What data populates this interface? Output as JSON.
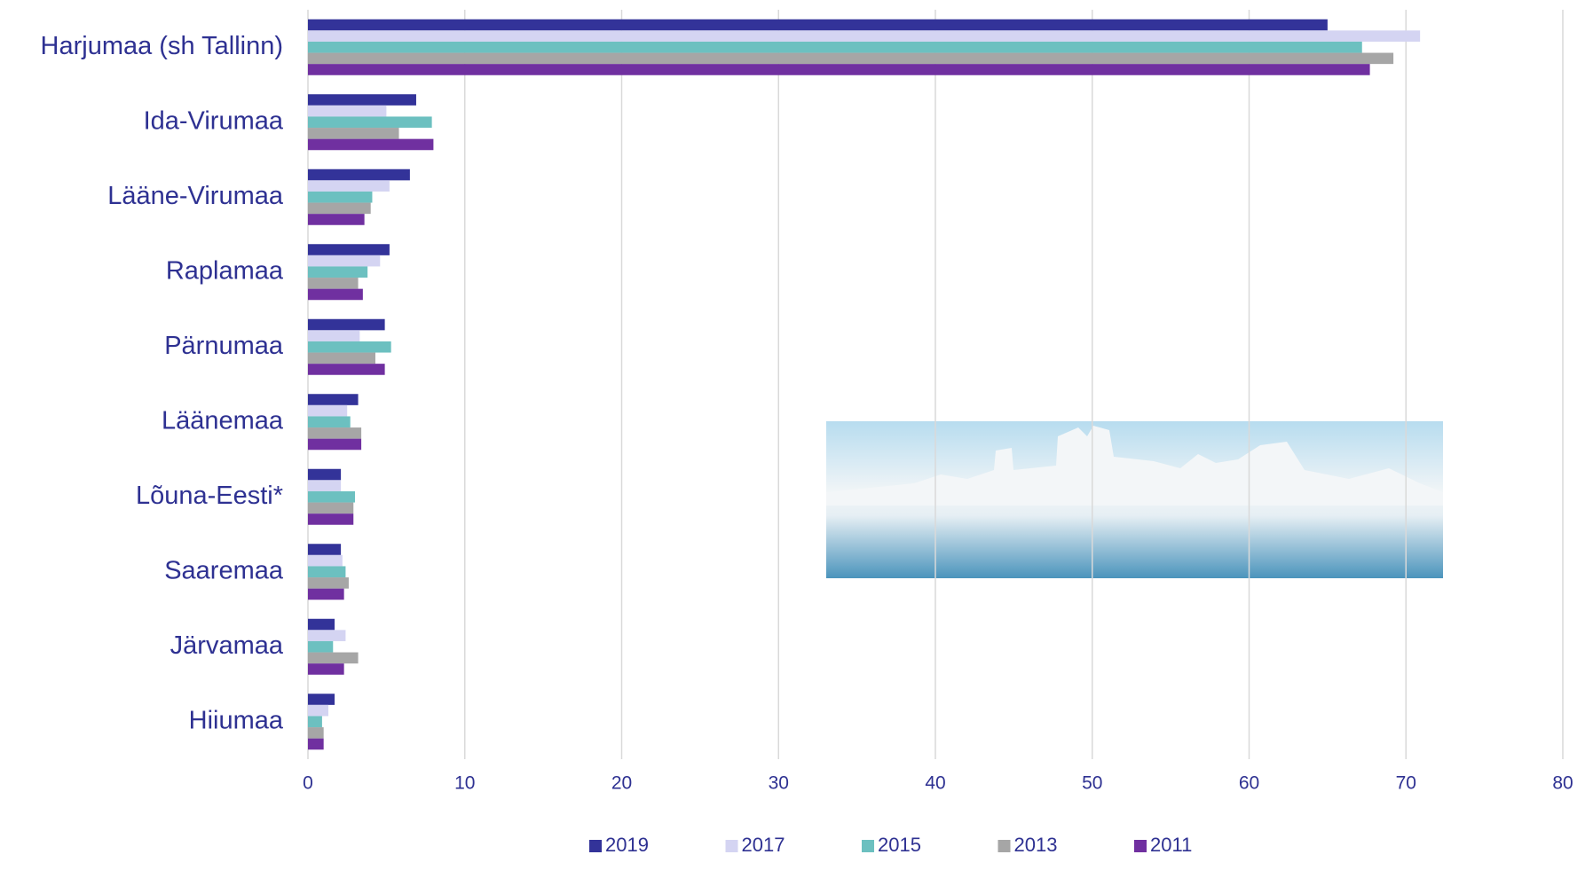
{
  "chart_data": {
    "type": "bar",
    "orientation": "horizontal",
    "categories": [
      "Harjumaa (sh Tallinn)",
      "Ida-Virumaa",
      "Lääne-Virumaa",
      "Raplamaa",
      "Pärnumaa",
      "Läänemaa",
      "Lõuna-Eesti*",
      "Saaremaa",
      "Järvamaa",
      "Hiiumaa"
    ],
    "series": [
      {
        "name": "2019",
        "color": "#333399",
        "values": [
          65.0,
          6.9,
          6.5,
          5.2,
          4.9,
          3.2,
          2.1,
          2.1,
          1.7,
          1.7
        ]
      },
      {
        "name": "2017",
        "color": "#d4d4f2",
        "values": [
          70.9,
          5.0,
          5.2,
          4.6,
          3.3,
          2.5,
          2.1,
          2.2,
          2.4,
          1.3
        ]
      },
      {
        "name": "2015",
        "color": "#6cc0c0",
        "values": [
          67.2,
          7.9,
          4.1,
          3.8,
          5.3,
          2.7,
          3.0,
          2.4,
          1.6,
          0.9
        ]
      },
      {
        "name": "2013",
        "color": "#a6a6a6",
        "values": [
          69.2,
          5.8,
          4.0,
          3.2,
          4.3,
          3.4,
          2.9,
          2.6,
          3.2,
          1.0
        ]
      },
      {
        "name": "2011",
        "color": "#7030a0",
        "values": [
          67.7,
          8.0,
          3.6,
          3.5,
          4.9,
          3.4,
          2.9,
          2.3,
          2.3,
          1.0
        ]
      }
    ],
    "xlim": [
      0,
      80
    ],
    "xticks": [
      0,
      10,
      20,
      30,
      40,
      50,
      60,
      70,
      80
    ],
    "grid": true,
    "legend": "bottom"
  }
}
